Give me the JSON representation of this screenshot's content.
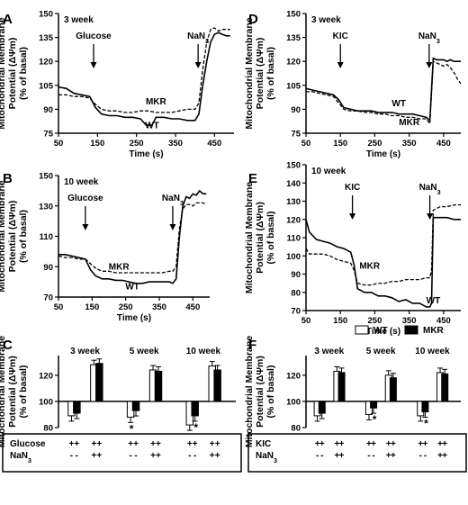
{
  "common": {
    "ylabel_line1": "Mitochondrial Membrane",
    "ylabel_line2": "Potential (ΔΨm)",
    "ylabel_line3": "(% of basal)",
    "time_xlabel": "Time (s)"
  },
  "legend": {
    "wt": "WT",
    "mkr": "MKR"
  },
  "chart_data": [
    {
      "panel": "A",
      "type": "line",
      "group_label": "3 week",
      "xlabel": "Time (s)",
      "xlim": [
        50,
        500
      ],
      "ylim": [
        75,
        150
      ],
      "xticks": [
        50,
        150,
        250,
        350,
        450
      ],
      "yticks": [
        75,
        90,
        105,
        120,
        135,
        150
      ],
      "annotations": [
        {
          "text": "Glucose",
          "x": 140
        },
        {
          "text": "NaN3",
          "x": 408
        },
        {
          "text": "MKR",
          "x": 300,
          "y": 93
        },
        {
          "text": "WT",
          "x": 290,
          "y": 78
        }
      ],
      "series": [
        {
          "name": "WT",
          "style": "solid",
          "x": [
            50,
            70,
            90,
            110,
            130,
            145,
            160,
            180,
            200,
            220,
            240,
            260,
            275,
            290,
            300,
            320,
            340,
            360,
            380,
            400,
            410,
            420,
            430,
            440,
            450,
            460,
            470,
            480,
            490
          ],
          "y": [
            104,
            103,
            100,
            99,
            98,
            91,
            87,
            86,
            86,
            85,
            85,
            84,
            80,
            80,
            85,
            85,
            84,
            84,
            83,
            83,
            87,
            105,
            120,
            132,
            137,
            138,
            137,
            136,
            136
          ]
        },
        {
          "name": "MKR",
          "style": "dashed",
          "x": [
            50,
            70,
            90,
            110,
            130,
            145,
            160,
            180,
            200,
            220,
            240,
            260,
            280,
            300,
            320,
            340,
            360,
            380,
            400,
            410,
            420,
            430,
            440,
            450,
            460,
            470,
            480,
            490
          ],
          "y": [
            99,
            99,
            98,
            98,
            97,
            93,
            90,
            89,
            89,
            88,
            88,
            89,
            89,
            88,
            88,
            88,
            89,
            90,
            90,
            94,
            115,
            132,
            140,
            141,
            139,
            140,
            140,
            140
          ]
        }
      ]
    },
    {
      "panel": "B",
      "type": "line",
      "group_label": "10 week",
      "xlabel": "Time (s)",
      "xlim": [
        50,
        500
      ],
      "ylim": [
        70,
        150
      ],
      "xticks": [
        50,
        150,
        250,
        350,
        450
      ],
      "yticks": [
        70,
        90,
        110,
        130,
        150
      ],
      "annotations": [
        {
          "text": "Glucose",
          "x": 130
        },
        {
          "text": "NaN3",
          "x": 390
        },
        {
          "text": "MKR",
          "x": 230,
          "y": 88
        },
        {
          "text": "WT",
          "x": 270,
          "y": 75
        }
      ],
      "series": [
        {
          "name": "WT",
          "style": "solid",
          "x": [
            50,
            70,
            90,
            110,
            130,
            145,
            160,
            180,
            200,
            220,
            240,
            260,
            280,
            300,
            320,
            340,
            360,
            380,
            390,
            400,
            410,
            420,
            430,
            440,
            450,
            460,
            470,
            480,
            490
          ],
          "y": [
            98,
            98,
            97,
            96,
            95,
            88,
            84,
            82,
            82,
            81,
            81,
            80,
            79,
            79,
            80,
            80,
            80,
            80,
            79,
            82,
            110,
            130,
            136,
            135,
            138,
            137,
            140,
            138,
            138
          ]
        },
        {
          "name": "MKR",
          "style": "dashed",
          "x": [
            50,
            70,
            90,
            110,
            130,
            145,
            160,
            180,
            200,
            220,
            240,
            260,
            280,
            300,
            320,
            340,
            360,
            380,
            390,
            400,
            410,
            420,
            430,
            440,
            450,
            460,
            470,
            480,
            490
          ],
          "y": [
            97,
            96,
            96,
            95,
            95,
            92,
            89,
            87,
            87,
            86,
            86,
            86,
            86,
            86,
            86,
            86,
            86,
            87,
            87,
            90,
            115,
            128,
            131,
            131,
            130,
            132,
            132,
            132,
            131
          ]
        }
      ]
    },
    {
      "panel": "D",
      "type": "line",
      "group_label": "3 week",
      "xlabel": "Time (s)",
      "xlim": [
        50,
        500
      ],
      "ylim": [
        75,
        150
      ],
      "xticks": [
        50,
        150,
        250,
        350,
        450
      ],
      "yticks": [
        75,
        90,
        105,
        120,
        135,
        150
      ],
      "annotations": [
        {
          "text": "KIC",
          "x": 150
        },
        {
          "text": "NaN3",
          "x": 408
        },
        {
          "text": "WT",
          "x": 320,
          "y": 92
        },
        {
          "text": "MKR",
          "x": 350,
          "y": 80
        }
      ],
      "series": [
        {
          "name": "WT",
          "style": "solid",
          "x": [
            50,
            70,
            90,
            110,
            130,
            145,
            160,
            180,
            200,
            220,
            240,
            260,
            280,
            300,
            320,
            340,
            360,
            380,
            400,
            410,
            420,
            430,
            440,
            450,
            460,
            470,
            480,
            490,
            500
          ],
          "y": [
            103,
            102,
            101,
            100,
            99,
            96,
            91,
            90,
            89,
            89,
            89,
            88,
            88,
            88,
            87,
            87,
            87,
            86,
            85,
            83,
            122,
            121,
            121,
            121,
            120,
            121,
            120,
            120,
            120
          ]
        },
        {
          "name": "MKR",
          "style": "dashed",
          "x": [
            50,
            70,
            90,
            110,
            130,
            145,
            160,
            180,
            200,
            220,
            240,
            260,
            280,
            300,
            320,
            340,
            360,
            380,
            400,
            410,
            420,
            430,
            440,
            450,
            460,
            470,
            480,
            490,
            500
          ],
          "y": [
            101,
            101,
            100,
            99,
            98,
            94,
            90,
            89,
            89,
            88,
            88,
            87,
            87,
            86,
            86,
            85,
            85,
            84,
            84,
            81,
            120,
            119,
            118,
            117,
            118,
            116,
            113,
            109,
            106
          ]
        }
      ]
    },
    {
      "panel": "E",
      "type": "line",
      "group_label": "10 week",
      "xlabel": "Time (s)",
      "xlim": [
        50,
        500
      ],
      "ylim": [
        70,
        150
      ],
      "xticks": [
        50,
        150,
        250,
        350,
        450
      ],
      "yticks": [
        70,
        80,
        90,
        100,
        110,
        120,
        130,
        140,
        150
      ],
      "annotations": [
        {
          "text": "KIC",
          "x": 185
        },
        {
          "text": "NaN3",
          "x": 410
        },
        {
          "text": "MKR",
          "x": 235,
          "y": 93
        },
        {
          "text": "WT",
          "x": 420,
          "y": 74
        }
      ],
      "series": [
        {
          "name": "WT",
          "style": "solid",
          "x": [
            50,
            60,
            80,
            100,
            120,
            140,
            160,
            180,
            190,
            200,
            220,
            240,
            260,
            280,
            300,
            320,
            340,
            360,
            380,
            400,
            410,
            415,
            420,
            440,
            460,
            480,
            500
          ],
          "y": [
            120,
            113,
            109,
            108,
            107,
            105,
            104,
            102,
            95,
            82,
            80,
            80,
            78,
            78,
            77,
            75,
            76,
            74,
            74,
            72,
            72,
            74,
            121,
            121,
            121,
            120,
            120
          ]
        },
        {
          "name": "MKR",
          "style": "dashed",
          "x": [
            50,
            60,
            80,
            100,
            120,
            140,
            160,
            180,
            190,
            200,
            220,
            240,
            260,
            280,
            300,
            320,
            340,
            360,
            380,
            400,
            410,
            415,
            420,
            440,
            460,
            480,
            500
          ],
          "y": [
            104,
            101,
            101,
            101,
            100,
            98,
            97,
            96,
            92,
            85,
            84,
            84,
            85,
            85,
            86,
            86,
            87,
            87,
            87,
            88,
            88,
            92,
            125,
            127,
            127,
            128,
            128
          ]
        }
      ]
    },
    {
      "panel": "C",
      "type": "bar",
      "ylim": [
        80,
        135
      ],
      "yticks": [
        80,
        100,
        120
      ],
      "groups": [
        "3 week",
        "5 week",
        "10 week"
      ],
      "bars_order": [
        "WT: Glucose",
        "MKR: Glucose",
        "WT: Glucose+NaN3",
        "MKR: Glucose+NaN3"
      ],
      "series": [
        {
          "name": "WT",
          "values": [
            89,
            88,
            82,
            128,
            124,
            127
          ]
        },
        {
          "name": "MKR",
          "values": [
            91,
            93,
            89,
            129,
            123,
            124
          ]
        }
      ],
      "significance": [
        {
          "group": "5 week",
          "bar": "WT",
          "text": "*"
        },
        {
          "group": "10 week",
          "bar": "MKR",
          "text": "*"
        }
      ],
      "treatment_table": [
        {
          "label": "Glucose",
          "marks": [
            "+",
            "+",
            "+",
            "+",
            "+",
            "+",
            "+",
            "+",
            "+",
            "+",
            "+",
            "+"
          ]
        },
        {
          "label": "NaN3",
          "marks": [
            "-",
            "-",
            "+",
            "+",
            "-",
            "-",
            "+",
            "+",
            "-",
            "-",
            "+",
            "+"
          ]
        }
      ]
    },
    {
      "panel": "F",
      "type": "bar",
      "ylim": [
        80,
        135
      ],
      "yticks": [
        80,
        100,
        120
      ],
      "groups": [
        "3 week",
        "5 week",
        "10 week"
      ],
      "series": [
        {
          "name": "WT",
          "values": [
            89,
            90,
            89,
            123,
            120,
            122
          ]
        },
        {
          "name": "MKR",
          "values": [
            91,
            95,
            92,
            122,
            118,
            121
          ]
        }
      ],
      "significance": [
        {
          "group": "5 week",
          "bar": "MKR",
          "text": "*"
        },
        {
          "group": "10 week",
          "bar": "MKR",
          "text": "*"
        }
      ],
      "treatment_table": [
        {
          "label": "KIC",
          "marks": [
            "+",
            "+",
            "+",
            "+",
            "+",
            "+",
            "+",
            "+",
            "+",
            "+",
            "+",
            "+"
          ]
        },
        {
          "label": "NaN3",
          "marks": [
            "-",
            "-",
            "+",
            "+",
            "-",
            "-",
            "+",
            "+",
            "-",
            "-",
            "+",
            "+"
          ]
        }
      ]
    }
  ]
}
